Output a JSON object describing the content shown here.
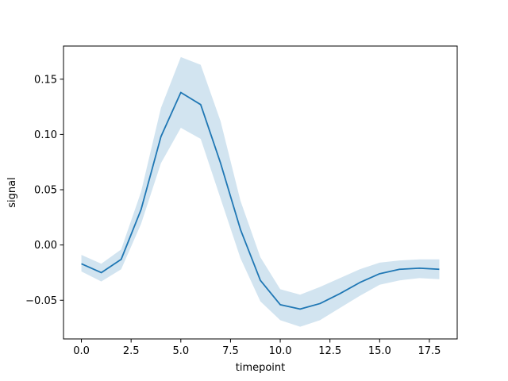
{
  "chart_data": {
    "type": "line",
    "title": "",
    "xlabel": "timepoint",
    "ylabel": "signal",
    "xlim": [
      -0.9,
      18.9
    ],
    "ylim": [
      -0.085,
      0.18
    ],
    "xticks": [
      0.0,
      2.5,
      5.0,
      7.5,
      10.0,
      12.5,
      15.0,
      17.5
    ],
    "xtick_labels": [
      "0.0",
      "2.5",
      "5.0",
      "7.5",
      "10.0",
      "12.5",
      "15.0",
      "17.5"
    ],
    "yticks": [
      -0.05,
      0.0,
      0.05,
      0.1,
      0.15
    ],
    "ytick_labels": [
      "−0.05",
      "0.00",
      "0.05",
      "0.10",
      "0.15"
    ],
    "grid": false,
    "legend": "none",
    "colors": {
      "line": "#1f77b4",
      "band": "#1f77b4",
      "band_opacity": 0.2
    },
    "x": [
      0,
      1,
      2,
      3,
      4,
      5,
      6,
      7,
      8,
      9,
      10,
      11,
      12,
      13,
      14,
      15,
      16,
      17,
      18
    ],
    "series": [
      {
        "values": [
          -0.017,
          -0.025,
          -0.013,
          0.032,
          0.098,
          0.138,
          0.127,
          0.074,
          0.014,
          -0.032,
          -0.054,
          -0.058,
          -0.053,
          -0.044,
          -0.034,
          -0.026,
          -0.022,
          -0.021,
          -0.022
        ],
        "ci_lower": [
          -0.024,
          -0.033,
          -0.022,
          0.019,
          0.074,
          0.106,
          0.096,
          0.042,
          -0.012,
          -0.051,
          -0.068,
          -0.074,
          -0.068,
          -0.057,
          -0.046,
          -0.036,
          -0.032,
          -0.03,
          -0.031
        ],
        "ci_upper": [
          -0.009,
          -0.017,
          -0.004,
          0.048,
          0.124,
          0.17,
          0.163,
          0.112,
          0.04,
          -0.011,
          -0.04,
          -0.045,
          -0.038,
          -0.03,
          -0.022,
          -0.016,
          -0.014,
          -0.013,
          -0.013
        ]
      }
    ]
  }
}
